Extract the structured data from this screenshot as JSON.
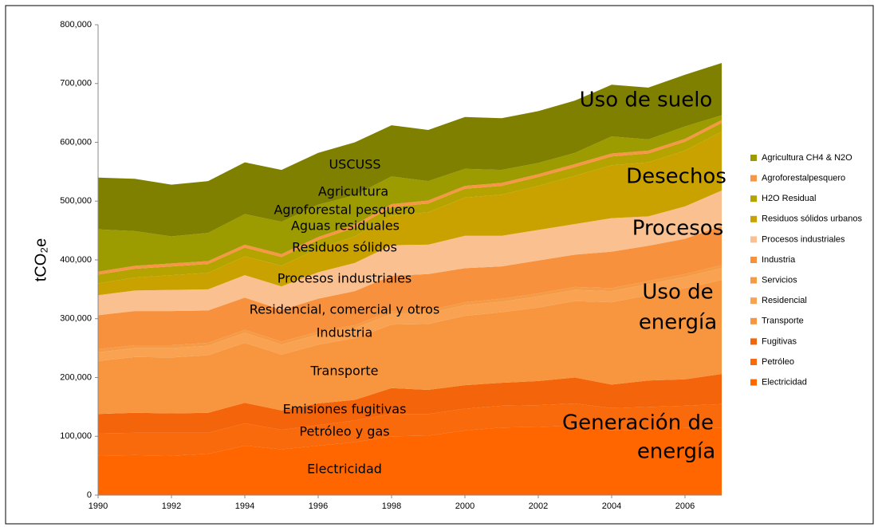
{
  "chart_data": {
    "type": "stacked_area",
    "x": [
      1990,
      1991,
      1992,
      1993,
      1994,
      1995,
      1996,
      1997,
      1998,
      1999,
      2000,
      2001,
      2002,
      2003,
      2004,
      2005,
      2006,
      2007
    ],
    "xlim": [
      1990,
      2007
    ],
    "xticks": [
      1990,
      1992,
      1994,
      1996,
      1998,
      2000,
      2002,
      2004,
      2006
    ],
    "ylim": [
      0,
      800000
    ],
    "yticks": [
      {
        "value": 0,
        "label": "0"
      },
      {
        "value": 100000,
        "label": "100,000"
      },
      {
        "value": 200000,
        "label": "200,000"
      },
      {
        "value": 300000,
        "label": "300,000"
      },
      {
        "value": 400000,
        "label": "400,000"
      },
      {
        "value": 500000,
        "label": "500,000"
      },
      {
        "value": 600000,
        "label": "600,000"
      },
      {
        "value": 700000,
        "label": "700,000"
      },
      {
        "value": 800000,
        "label": "800,000"
      }
    ],
    "y_label": "tCO₂e",
    "series": [
      {
        "name": "Electricidad",
        "color": "#FF6600",
        "values": [
          67000,
          68000,
          67000,
          70000,
          84000,
          78000,
          84000,
          90000,
          100000,
          101000,
          110000,
          115000,
          116000,
          118000,
          110000,
          112000,
          114000,
          115000
        ]
      },
      {
        "name": "Petróleo",
        "color": "#F86A0C",
        "values": [
          38000,
          38000,
          39000,
          36000,
          38000,
          33000,
          35000,
          37000,
          38000,
          37000,
          37000,
          37000,
          37000,
          38000,
          38000,
          38000,
          38000,
          40000
        ]
      },
      {
        "name": "Fugitivas",
        "color": "#F4640A",
        "values": [
          33000,
          34000,
          33000,
          34000,
          35000,
          33000,
          37000,
          35000,
          44000,
          41000,
          40000,
          39000,
          41000,
          44000,
          40000,
          45000,
          45000,
          51000
        ]
      },
      {
        "name": "Transporte",
        "color": "#F7963F",
        "values": [
          90000,
          95000,
          95000,
          98000,
          102000,
          95000,
          100000,
          105000,
          108000,
          112000,
          118000,
          120000,
          125000,
          130000,
          140000,
          145000,
          155000,
          160000
        ]
      },
      {
        "name": "Residencial",
        "color": "#F9A252",
        "values": [
          15000,
          15000,
          16000,
          16000,
          17000,
          17000,
          17000,
          17000,
          18000,
          18000,
          18000,
          18000,
          19000,
          19000,
          19000,
          19000,
          19000,
          20000
        ]
      },
      {
        "name": "Servicios",
        "color": "#F59A45",
        "values": [
          5000,
          5000,
          5000,
          5000,
          5000,
          5000,
          5000,
          5000,
          5000,
          5000,
          5000,
          5000,
          5000,
          5000,
          5000,
          5000,
          5000,
          5000
        ]
      },
      {
        "name": "Industria",
        "color": "#F7913D",
        "values": [
          58000,
          58000,
          58000,
          55000,
          55000,
          54000,
          56000,
          58000,
          60000,
          62000,
          58000,
          55000,
          56000,
          55000,
          62000,
          60000,
          60000,
          67000
        ]
      },
      {
        "name": "Procesos industriales",
        "color": "#FAC08F",
        "values": [
          34000,
          35000,
          36000,
          36000,
          38000,
          40000,
          45000,
          48000,
          52000,
          50000,
          55000,
          52000,
          52000,
          52000,
          57000,
          50000,
          55000,
          60000
        ]
      },
      {
        "name": "Residuos sólidos urbanos",
        "color": "#C9A200",
        "values": [
          20000,
          22000,
          25000,
          28000,
          32000,
          35000,
          40000,
          45000,
          50000,
          55000,
          65000,
          70000,
          75000,
          82000,
          90000,
          92000,
          95000,
          100000
        ]
      },
      {
        "name": "H2O Residual",
        "color": "#B5A400",
        "values": [
          15000,
          15000,
          15000,
          15000,
          15000,
          15000,
          15000,
          15000,
          15000,
          15000,
          15000,
          15000,
          15000,
          15000,
          15000,
          15000,
          15000,
          15000
        ]
      },
      {
        "name": "Agroforestalpesquero",
        "color": "#F79646",
        "values": [
          5000,
          5000,
          5000,
          5000,
          5000,
          5000,
          5000,
          5000,
          5000,
          5000,
          5000,
          5000,
          5000,
          5000,
          5000,
          5000,
          5000,
          5000
        ]
      },
      {
        "name": "Agricultura CH4 & N2O",
        "color": "#9C9C00",
        "values": [
          72000,
          59000,
          46000,
          48000,
          52000,
          55000,
          55000,
          50000,
          47000,
          33000,
          29000,
          22000,
          19000,
          19000,
          29000,
          19000,
          21000,
          8000
        ]
      },
      {
        "color": "#808000",
        "values": [
          88000,
          89000,
          88000,
          88000,
          88000,
          88000,
          88000,
          90000,
          87000,
          87000,
          88000,
          88000,
          88000,
          89000,
          88000,
          88000,
          88000,
          89000
        ]
      }
    ],
    "annotations": [
      "USCUSS",
      "Agricultura",
      "Agroforestal pesquero",
      "Aguas residuales",
      "Residuos sólidos",
      "Procesos industriales",
      "Residencial, comercial y otros",
      "Industria",
      "Transporte",
      "Emisiones fugitivas",
      "Petróleo y gas",
      "Electricidad",
      "Uso de suelo",
      "Desechos",
      "Procesos",
      "Uso de",
      "energía",
      "Generación de",
      "energía"
    ]
  }
}
